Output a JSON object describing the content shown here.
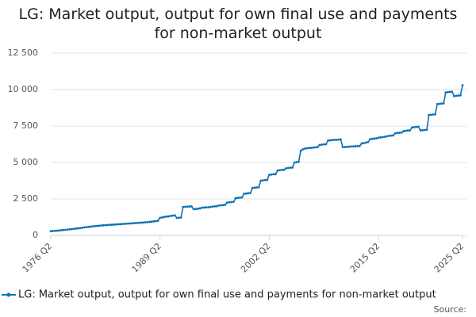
{
  "chart_data": {
    "type": "line",
    "title": "LG: Market output, output for own final use and payments for non-market output",
    "source": "Source:",
    "categories": [
      "1976 Q2",
      null,
      null,
      null,
      null,
      null,
      null,
      null,
      null,
      null,
      null,
      null,
      null,
      null,
      null,
      null,
      null,
      null,
      null,
      null,
      null,
      null,
      null,
      null,
      null,
      null,
      null,
      null,
      null,
      null,
      null,
      null,
      null,
      null,
      null,
      null,
      null,
      null,
      null,
      null,
      null,
      null,
      null,
      null,
      null,
      null,
      null,
      null,
      null,
      null,
      null,
      null,
      "1989 Q2",
      null,
      null,
      null,
      null,
      null,
      null,
      null,
      null,
      null,
      null,
      null,
      null,
      null,
      null,
      null,
      null,
      null,
      null,
      null,
      null,
      null,
      null,
      null,
      null,
      null,
      null,
      null,
      null,
      null,
      null,
      null,
      null,
      null,
      null,
      null,
      null,
      null,
      null,
      null,
      null,
      null,
      null,
      null,
      null,
      null,
      null,
      null,
      null,
      null,
      null,
      null,
      "2002 Q2",
      null,
      null,
      null,
      null,
      null,
      null,
      null,
      null,
      null,
      null,
      null,
      null,
      null,
      null,
      null,
      null,
      null,
      null,
      null,
      null,
      null,
      null,
      null,
      null,
      null,
      null,
      null,
      null,
      null,
      null,
      null,
      null,
      null,
      null,
      null,
      null,
      null,
      null,
      null,
      null,
      null,
      null,
      null,
      null,
      null,
      null,
      null,
      null,
      null,
      null,
      null,
      "2015 Q2",
      null,
      null,
      null,
      null,
      null,
      null,
      null,
      null,
      null,
      null,
      null,
      null,
      null,
      null,
      null,
      null,
      null,
      null,
      null,
      null,
      null,
      null,
      null,
      null,
      null,
      null,
      null,
      null,
      null,
      null,
      null,
      null,
      null,
      null,
      null,
      null,
      null,
      null,
      null,
      "2025 Q2"
    ],
    "series": [
      {
        "name": "LG: Market output, output for own final use and payments for non-market output",
        "color": "#0b72b5",
        "values": [
          290,
          300,
          310,
          320,
          340,
          350,
          365,
          380,
          400,
          415,
          430,
          450,
          470,
          485,
          500,
          520,
          550,
          565,
          580,
          600,
          620,
          630,
          645,
          660,
          680,
          690,
          700,
          710,
          720,
          730,
          740,
          750,
          760,
          770,
          780,
          790,
          800,
          810,
          820,
          830,
          840,
          850,
          860,
          870,
          880,
          895,
          905,
          920,
          940,
          960,
          980,
          1000,
          1200,
          1230,
          1260,
          1290,
          1300,
          1330,
          1350,
          1380,
          1200,
          1210,
          1230,
          1950,
          1960,
          1970,
          1980,
          1990,
          1800,
          1810,
          1830,
          1850,
          1900,
          1910,
          1920,
          1930,
          1950,
          1970,
          1990,
          2000,
          2050,
          2060,
          2080,
          2100,
          2250,
          2270,
          2290,
          2300,
          2550,
          2570,
          2590,
          2600,
          2850,
          2870,
          2890,
          2900,
          3250,
          3270,
          3290,
          3300,
          3750,
          3770,
          3790,
          3800,
          4150,
          4170,
          4190,
          4200,
          4450,
          4470,
          4490,
          4500,
          4600,
          4620,
          4640,
          4650,
          5000,
          5020,
          5040,
          5800,
          5900,
          5950,
          5980,
          6000,
          6000,
          6020,
          6040,
          6050,
          6200,
          6220,
          6240,
          6250,
          6500,
          6520,
          6540,
          6550,
          6550,
          6570,
          6580,
          6050,
          6050,
          6070,
          6080,
          6100,
          6100,
          6110,
          6120,
          6130,
          6300,
          6330,
          6360,
          6400,
          6600,
          6620,
          6640,
          6650,
          6700,
          6720,
          6740,
          6750,
          6800,
          6820,
          6840,
          6850,
          7000,
          7020,
          7040,
          7050,
          7150,
          7170,
          7190,
          7200,
          7400,
          7420,
          7440,
          7450,
          7200,
          7210,
          7230,
          7250,
          8250,
          8270,
          8290,
          8300,
          9000,
          9020,
          9040,
          9050,
          9800,
          9820,
          9840,
          9850,
          9550,
          9570,
          9590,
          9600,
          10300
        ]
      }
    ],
    "ylim": [
      0,
      12500
    ],
    "yticks": [
      0,
      {
        "value": 2500,
        "label": "2 500"
      },
      {
        "value": 5000,
        "label": "5 000"
      },
      {
        "value": 7500,
        "label": "7 500"
      },
      {
        "value": 10000,
        "label": "10 000"
      },
      {
        "value": 12500,
        "label": "12 500"
      }
    ],
    "grid": true
  }
}
